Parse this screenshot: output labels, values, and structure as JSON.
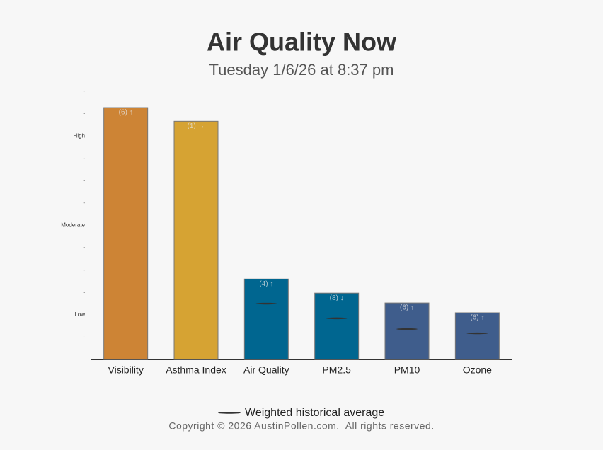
{
  "chart_data": {
    "type": "bar",
    "title": "Air Quality Now",
    "subtitle": "Tuesday 1/6/26 at 8:37 pm",
    "categories": [
      "Visibility",
      "Asthma Index",
      "Air Quality",
      "PM2.5",
      "PM10",
      "Ozone"
    ],
    "values": [
      11.27,
      10.66,
      3.6,
      2.97,
      2.53,
      2.09
    ],
    "colors": [
      "#cd8435",
      "#d6a333",
      "#006690",
      "#006690",
      "#3f5d8c",
      "#3f5d8c"
    ],
    "bar_labels": [
      "(6) ↑",
      "(1) →",
      "(4) ↑",
      "(8) ↓",
      "(6) ↑",
      "(6) ↑"
    ],
    "average": {
      "name": "Weighted historical average",
      "color": "#333333",
      "values": [
        null,
        null,
        2.5,
        1.84,
        1.36,
        1.17
      ]
    },
    "ylim": [
      0,
      12
    ],
    "yticks": [
      {
        "value": 1,
        "label": "-"
      },
      {
        "value": 2,
        "label": "Low"
      },
      {
        "value": 3,
        "label": "-"
      },
      {
        "value": 4,
        "label": "-"
      },
      {
        "value": 5,
        "label": "-"
      },
      {
        "value": 6,
        "label": "Moderate"
      },
      {
        "value": 7,
        "label": "-"
      },
      {
        "value": 8,
        "label": "-"
      },
      {
        "value": 9,
        "label": "-"
      },
      {
        "value": 10,
        "label": "High"
      },
      {
        "value": 11,
        "label": "-"
      },
      {
        "value": 12,
        "label": "-"
      }
    ],
    "footer": "Copyright © 2026 AustinPollen.com.  All rights reserved."
  }
}
